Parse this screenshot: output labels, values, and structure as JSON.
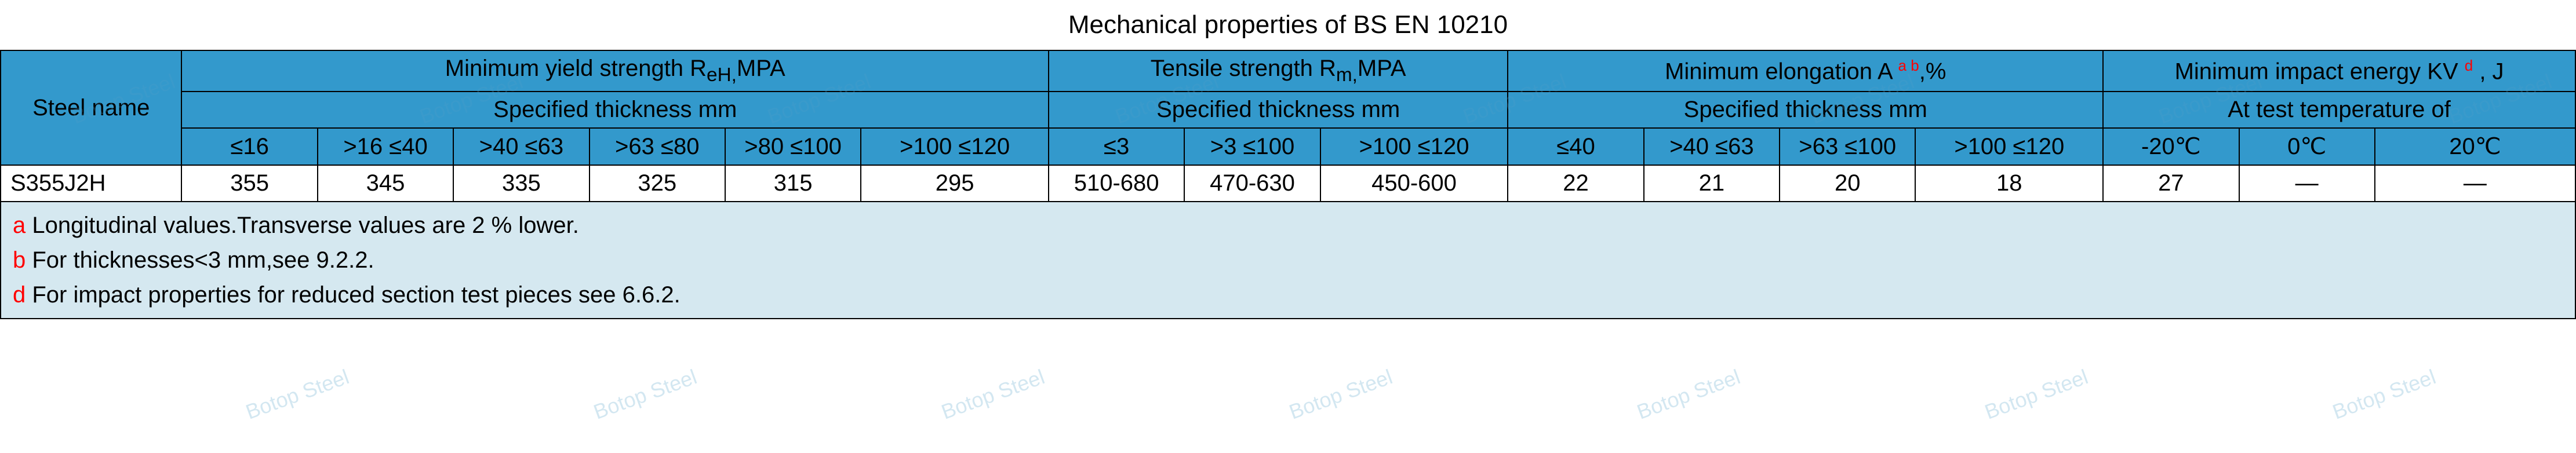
{
  "title": "Mechanical properties of BS EN 10210",
  "headers": {
    "steel_name": "Steel name",
    "yield": {
      "label_pre": "Minimum yield strength R",
      "sub": "eH,",
      "label_post": "MPA",
      "sub_label": "Specified thickness mm"
    },
    "tensile": {
      "label_pre": "Tensile strength R",
      "sub": "m,",
      "label_post": "MPA",
      "sub_label": "Specified thickness mm"
    },
    "elong": {
      "label_pre": "Minimum elongation A ",
      "sup": "a b",
      "label_post": ",%",
      "sub_label": "Specified thickness mm"
    },
    "impact": {
      "label_pre": "Minimum impact energy KV ",
      "sup": "d",
      "label_post": " , J",
      "sub_label": "At test temperature of"
    }
  },
  "yield_ranges": [
    "≤16",
    ">16 ≤40",
    ">40 ≤63",
    ">63 ≤80",
    ">80 ≤100",
    ">100 ≤120"
  ],
  "tensile_ranges": [
    "≤3",
    ">3 ≤100",
    ">100 ≤120"
  ],
  "elong_ranges": [
    "≤40",
    ">40 ≤63",
    ">63 ≤100",
    ">100 ≤120"
  ],
  "impact_temps": [
    "-20℃",
    "0℃",
    "20℃"
  ],
  "row": {
    "name": "S355J2H",
    "yield": [
      "355",
      "345",
      "335",
      "325",
      "315",
      "295"
    ],
    "tensile": [
      "510-680",
      "470-630",
      "450-600"
    ],
    "elong": [
      "22",
      "21",
      "20",
      "18"
    ],
    "impact": [
      "27",
      "—",
      "—"
    ]
  },
  "notes": {
    "a": {
      "key": "a",
      "text": " Longitudinal values.Transverse values are 2 % lower."
    },
    "b": {
      "key": "b",
      "text": " For thicknesses<3 mm,see 9.2.2."
    },
    "d": {
      "key": "d",
      "text": " For impact properties for reduced section test pieces see 6.6.2."
    }
  },
  "watermark_text": "Botop Steel",
  "colors": {
    "header_bg": "#3399cc",
    "notes_bg": "#d5e8f0",
    "border": "#000000",
    "note_key": "#ff0000",
    "watermark": "rgba(80,160,200,0.25)"
  }
}
